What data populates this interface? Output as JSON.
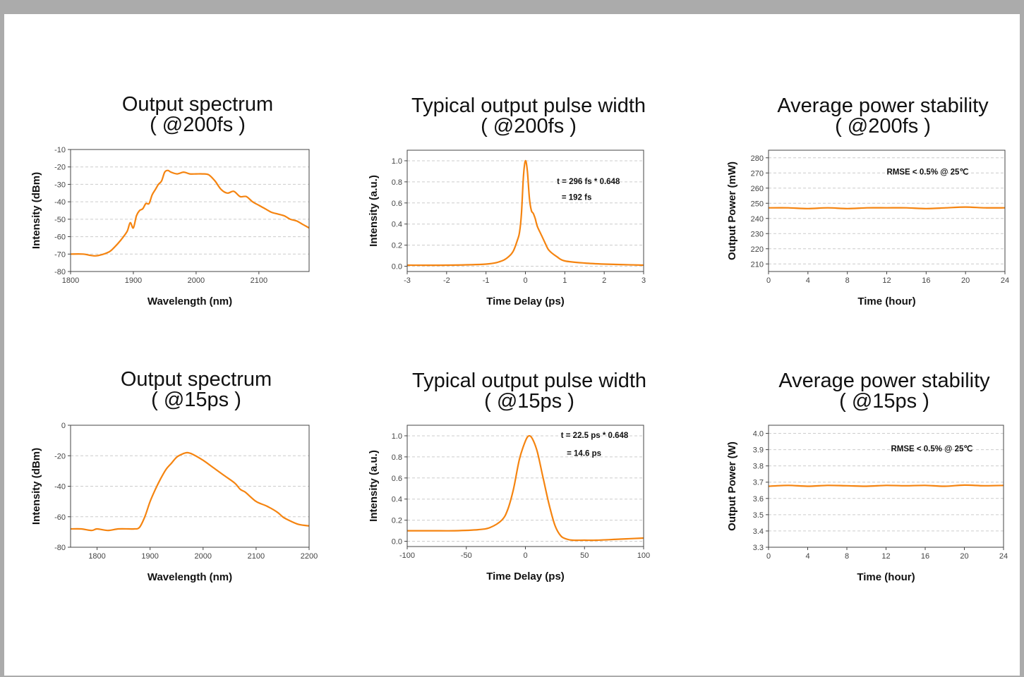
{
  "colors": {
    "series": "#f58410",
    "grid": "#cccccc",
    "axis": "#444444",
    "frame": "#ababab"
  },
  "chart_data": [
    {
      "type": "line",
      "title_line1": "Output spectrum",
      "title_line2": "( @200fs )",
      "xlabel": "Wavelength (nm)",
      "ylabel": "Intensity (dBm)",
      "xlim": [
        1800,
        2180
      ],
      "ylim": [
        -80,
        -10
      ],
      "xticks": [
        1800,
        1900,
        2000,
        2100
      ],
      "xtick_labels": [
        "1800",
        "1900",
        "2000",
        "2100"
      ],
      "yticks": [
        -80,
        -70,
        -60,
        -50,
        -40,
        -30,
        -20,
        -10
      ],
      "ytick_labels": [
        "-80",
        "-70",
        "-60",
        "-50",
        "-40",
        "-30",
        "-20",
        "-10"
      ],
      "grid": "horizontal dashed",
      "annotations": [],
      "series": [
        {
          "x": [
            1800,
            1820,
            1840,
            1860,
            1870,
            1880,
            1890,
            1895,
            1900,
            1905,
            1910,
            1915,
            1920,
            1925,
            1930,
            1935,
            1940,
            1945,
            1950,
            1955,
            1960,
            1970,
            1980,
            1990,
            2000,
            2010,
            2020,
            2030,
            2040,
            2050,
            2060,
            2070,
            2080,
            2090,
            2100,
            2110,
            2120,
            2130,
            2140,
            2150,
            2160,
            2170,
            2180
          ],
          "y": [
            -70,
            -70,
            -71,
            -69,
            -66,
            -62,
            -57,
            -52,
            -55,
            -48,
            -45,
            -44,
            -41,
            -41,
            -36,
            -33,
            -30,
            -28,
            -23,
            -22,
            -23,
            -24,
            -23,
            -24,
            -24,
            -24,
            -24.5,
            -28,
            -33,
            -35,
            -34,
            -37,
            -37,
            -40,
            -42,
            -44,
            -46,
            -47,
            -48,
            -50,
            -51,
            -53,
            -55
          ]
        }
      ]
    },
    {
      "type": "line",
      "title_line1": "Typical output pulse width",
      "title_line2": "( @200fs )",
      "xlabel": "Time Delay (ps)",
      "ylabel": "Intensity (a.u.)",
      "xlim": [
        -3,
        3
      ],
      "ylim": [
        -0.05,
        1.1
      ],
      "xticks": [
        -3,
        -2,
        -1,
        0,
        1,
        2,
        3
      ],
      "xtick_labels": [
        "-3",
        "-2",
        "-1",
        "0",
        "1",
        "2",
        "3"
      ],
      "yticks": [
        0.0,
        0.2,
        0.4,
        0.6,
        0.8,
        1.0
      ],
      "ytick_labels": [
        "0.0",
        "0.2",
        "0.4",
        "0.6",
        "0.8",
        "1.0"
      ],
      "grid": "horizontal dashed",
      "annotations": [
        {
          "text": "t = 296 fs * 0.648",
          "x": 0.8,
          "y": 0.78
        },
        {
          "text": "= 192 fs",
          "x": 0.92,
          "y": 0.63
        }
      ],
      "series": [
        {
          "x": [
            -3,
            -2,
            -1,
            -0.6,
            -0.4,
            -0.3,
            -0.2,
            -0.15,
            -0.1,
            -0.05,
            0,
            0.05,
            0.1,
            0.15,
            0.2,
            0.25,
            0.3,
            0.4,
            0.5,
            0.6,
            0.8,
            1.0,
            1.5,
            2,
            3
          ],
          "y": [
            0.01,
            0.01,
            0.02,
            0.05,
            0.1,
            0.15,
            0.25,
            0.32,
            0.5,
            0.85,
            1.0,
            0.9,
            0.65,
            0.53,
            0.5,
            0.45,
            0.38,
            0.3,
            0.22,
            0.15,
            0.09,
            0.05,
            0.03,
            0.02,
            0.01
          ]
        }
      ]
    },
    {
      "type": "line",
      "title_line1": "Average power stability",
      "title_line2": "( @200fs )",
      "xlabel": "Time (hour)",
      "ylabel": "Output Power (mW)",
      "xlim": [
        0,
        24
      ],
      "ylim": [
        205,
        285
      ],
      "xticks": [
        0,
        4,
        8,
        12,
        16,
        20,
        24
      ],
      "xtick_labels": [
        "0",
        "4",
        "8",
        "12",
        "16",
        "20",
        "24"
      ],
      "yticks": [
        210,
        220,
        230,
        240,
        250,
        260,
        270,
        280
      ],
      "ytick_labels": [
        "210",
        "220",
        "230",
        "240",
        "250",
        "260",
        "270",
        "280"
      ],
      "grid": "horizontal dashed",
      "annotations": [
        {
          "text": "RMSE < 0.5% @ 25℃",
          "x": 12,
          "y": 269
        }
      ],
      "series": [
        {
          "x": [
            0,
            2,
            4,
            6,
            8,
            10,
            12,
            14,
            16,
            18,
            20,
            22,
            24
          ],
          "y": [
            247,
            247,
            246.5,
            247,
            246.5,
            247,
            247,
            247,
            246.5,
            247,
            247.5,
            247,
            247
          ]
        }
      ]
    },
    {
      "type": "line",
      "title_line1": "Output spectrum",
      "title_line2": "( @15ps )",
      "xlabel": "Wavelength (nm)",
      "ylabel": "Intensity (dBm)",
      "xlim": [
        1750,
        2200
      ],
      "ylim": [
        -80,
        0
      ],
      "xticks": [
        1800,
        1900,
        2000,
        2100,
        2200
      ],
      "xtick_labels": [
        "1800",
        "1900",
        "2000",
        "2100",
        "2200"
      ],
      "yticks": [
        -80,
        -60,
        -40,
        -20,
        0
      ],
      "ytick_labels": [
        "-80",
        "-60",
        "-40",
        "-20",
        "0"
      ],
      "grid": "horizontal dashed",
      "annotations": [],
      "series": [
        {
          "x": [
            1750,
            1770,
            1790,
            1800,
            1820,
            1840,
            1860,
            1870,
            1880,
            1890,
            1900,
            1910,
            1920,
            1930,
            1940,
            1950,
            1960,
            1970,
            1980,
            2000,
            2020,
            2040,
            2060,
            2070,
            2080,
            2100,
            2120,
            2140,
            2150,
            2160,
            2180,
            2200
          ],
          "y": [
            -68,
            -68,
            -69,
            -68,
            -69,
            -68,
            -68,
            -68,
            -67,
            -60,
            -50,
            -42,
            -35,
            -29,
            -25,
            -21,
            -19,
            -18,
            -19,
            -23,
            -28,
            -33,
            -38,
            -42,
            -44,
            -50,
            -53,
            -57,
            -60,
            -62,
            -65,
            -66
          ]
        }
      ]
    },
    {
      "type": "line",
      "title_line1": "Typical output pulse width",
      "title_line2": "( @15ps )",
      "xlabel": "Time Delay (ps)",
      "ylabel": "Intensity (a.u.)",
      "xlim": [
        -100,
        100
      ],
      "ylim": [
        -0.05,
        1.1
      ],
      "xticks": [
        -100,
        -50,
        0,
        50,
        100
      ],
      "xtick_labels": [
        "-100",
        "-50",
        "0",
        "50",
        "100"
      ],
      "yticks": [
        0.0,
        0.2,
        0.4,
        0.6,
        0.8,
        1.0
      ],
      "ytick_labels": [
        "0.0",
        "0.2",
        "0.4",
        "0.6",
        "0.8",
        "1.0"
      ],
      "grid": "horizontal dashed",
      "annotations": [
        {
          "text": "t = 22.5 ps * 0.648",
          "x": 30,
          "y": 0.98
        },
        {
          "text": "= 14.6 ps",
          "x": 35,
          "y": 0.81
        }
      ],
      "series": [
        {
          "x": [
            -100,
            -80,
            -60,
            -40,
            -30,
            -20,
            -15,
            -10,
            -5,
            0,
            3,
            6,
            10,
            15,
            20,
            25,
            30,
            35,
            40,
            50,
            60,
            80,
            100
          ],
          "y": [
            0.1,
            0.1,
            0.1,
            0.11,
            0.13,
            0.2,
            0.3,
            0.5,
            0.78,
            0.95,
            1.0,
            0.97,
            0.85,
            0.6,
            0.35,
            0.15,
            0.05,
            0.02,
            0.01,
            0.01,
            0.01,
            0.02,
            0.03
          ]
        }
      ]
    },
    {
      "type": "line",
      "title_line1": "Average power stability",
      "title_line2": "( @15ps )",
      "xlabel": "Time (hour)",
      "ylabel": "Output Power (W)",
      "xlim": [
        0,
        24
      ],
      "ylim": [
        3.3,
        4.05
      ],
      "xticks": [
        0,
        4,
        8,
        12,
        16,
        20,
        24
      ],
      "xtick_labels": [
        "0",
        "4",
        "8",
        "12",
        "16",
        "20",
        "24"
      ],
      "yticks": [
        3.3,
        3.4,
        3.5,
        3.6,
        3.7,
        3.8,
        3.9,
        4.0
      ],
      "ytick_labels": [
        "3.3",
        "3.4",
        "3.5",
        "3.6",
        "3.7",
        "3.8",
        "3.9",
        "4.0"
      ],
      "grid": "horizontal dashed",
      "annotations": [
        {
          "text": "RMSE < 0.5% @ 25℃",
          "x": 12.5,
          "y": 3.89
        }
      ],
      "series": [
        {
          "x": [
            0,
            2,
            4,
            6,
            8,
            10,
            12,
            14,
            16,
            18,
            20,
            22,
            24
          ],
          "y": [
            3.675,
            3.68,
            3.675,
            3.68,
            3.678,
            3.675,
            3.68,
            3.678,
            3.68,
            3.675,
            3.682,
            3.678,
            3.68
          ]
        }
      ]
    }
  ]
}
